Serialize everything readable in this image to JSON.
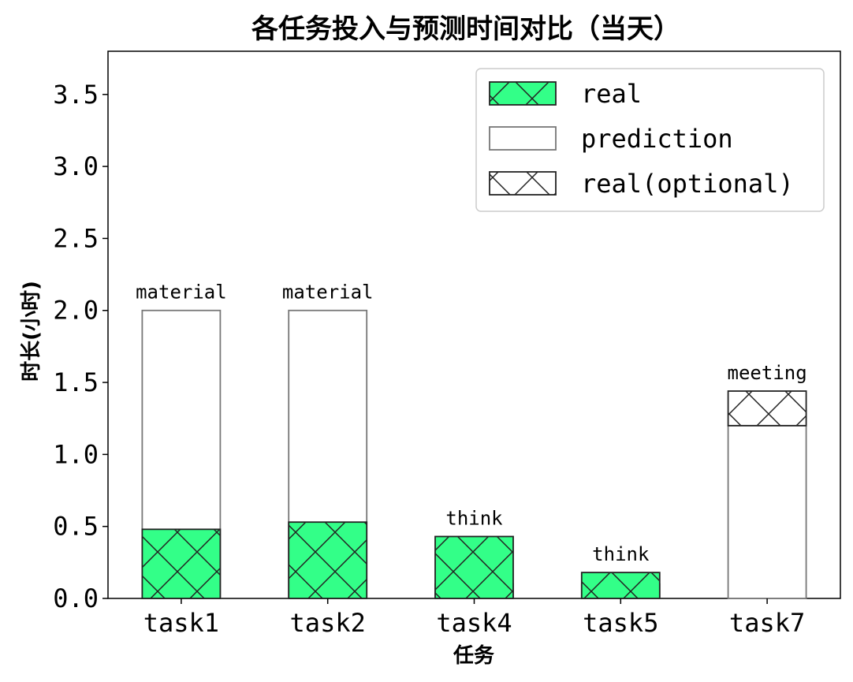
{
  "chart_data": {
    "type": "bar",
    "title": "各任务投入与预测时间对比（当天）",
    "xlabel": "任务",
    "ylabel": "时长(小时)",
    "ylim": [
      0,
      3.8
    ],
    "yticks": [
      0.0,
      0.5,
      1.0,
      1.5,
      2.0,
      2.5,
      3.0,
      3.5
    ],
    "ytick_labels": [
      "0.0",
      "0.5",
      "1.0",
      "1.5",
      "2.0",
      "2.5",
      "3.0",
      "3.5"
    ],
    "categories": [
      "task1",
      "task2",
      "task4",
      "task5",
      "task7"
    ],
    "series": [
      {
        "name": "real",
        "values": [
          0.48,
          0.53,
          0.43,
          0.18,
          0
        ],
        "color": "#33ff88",
        "hatch": "x"
      },
      {
        "name": "prediction",
        "values": [
          2.0,
          2.0,
          0.1,
          0.1,
          1.2
        ],
        "color": "#ffffff",
        "edge": "#777777"
      },
      {
        "name": "real(optional)",
        "values": [
          0,
          0,
          0,
          0,
          0.24
        ],
        "color": "#ffffff",
        "hatch": "x",
        "stack_on": "prediction"
      }
    ],
    "annotations": [
      "material",
      "material",
      "think",
      "think",
      "meeting"
    ],
    "legend_position": "top-right",
    "grid": false
  }
}
